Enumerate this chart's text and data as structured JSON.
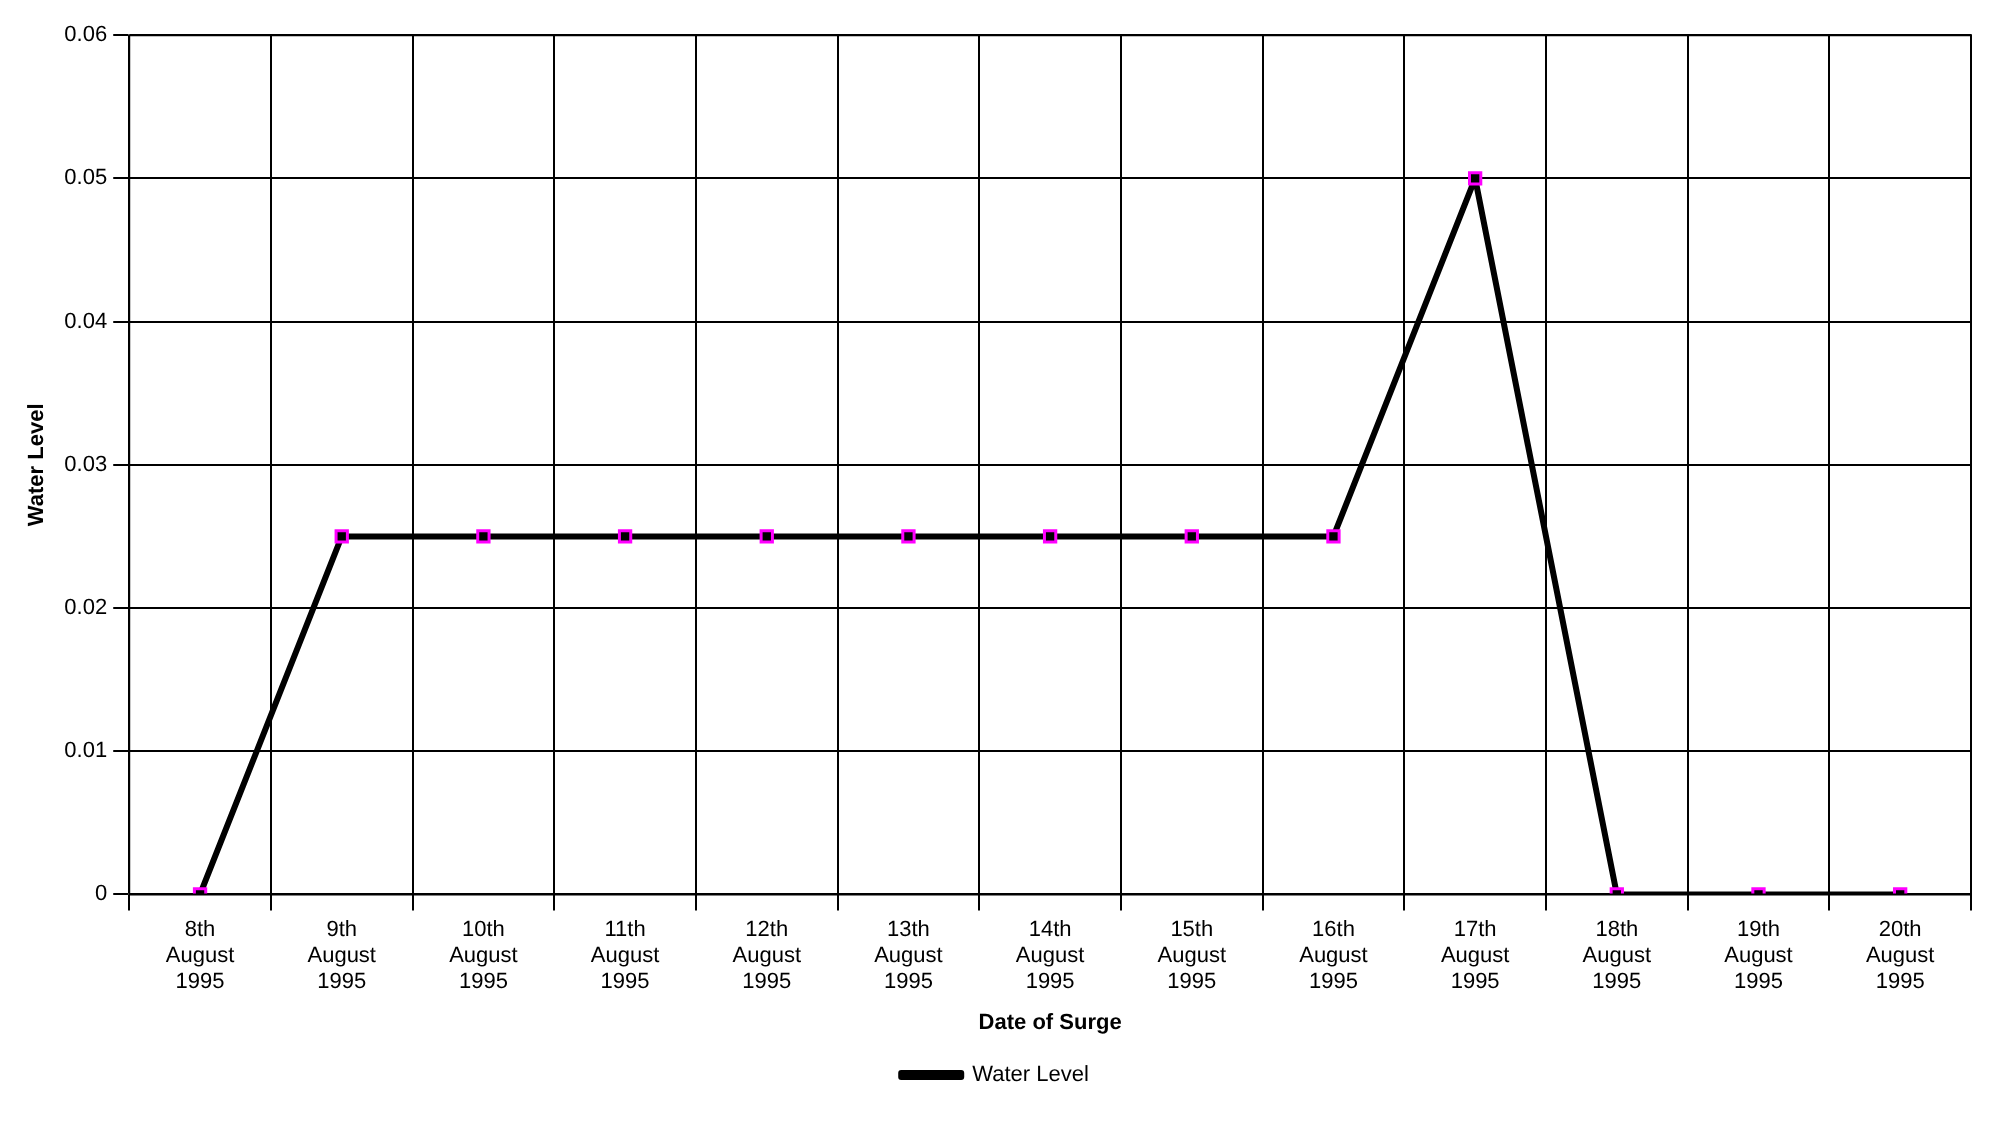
{
  "chart_data": {
    "type": "line",
    "xlabel": "Date of Surge",
    "ylabel": "Water Level",
    "categories": [
      "8th August 1995",
      "9th August 1995",
      "10th August 1995",
      "11th August 1995",
      "12th August 1995",
      "13th August 1995",
      "14th August 1995",
      "15th August 1995",
      "16th August 1995",
      "17th August 1995",
      "18th August 1995",
      "19th August 1995",
      "20th August 1995"
    ],
    "series": [
      {
        "name": "Water Level",
        "color": "#000000",
        "values": [
          0,
          0.025,
          0.025,
          0.025,
          0.025,
          0.025,
          0.025,
          0.025,
          0.025,
          0.05,
          0,
          0,
          0
        ]
      }
    ],
    "ylim": [
      0,
      0.06
    ],
    "yticks": [
      0,
      0.01,
      0.02,
      0.03,
      0.04,
      0.05,
      0.06
    ],
    "grid": true,
    "legend": "bottom",
    "marker": "square",
    "line_style": "solid"
  }
}
